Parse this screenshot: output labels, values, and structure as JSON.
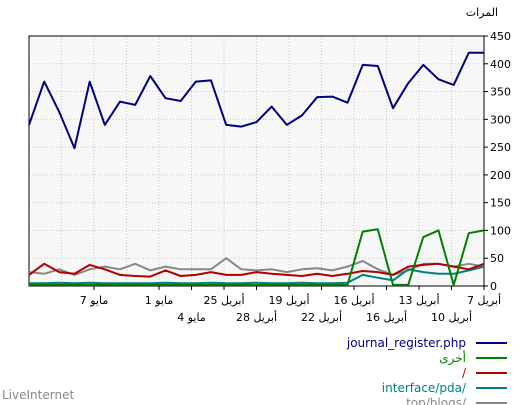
{
  "chart_data": {
    "type": "line",
    "ylabel": "المرات",
    "ylim": [
      0,
      450
    ],
    "yticks": [
      0,
      50,
      100,
      150,
      200,
      250,
      300,
      350,
      400,
      450
    ],
    "x_tick_labels_row1": [
      "7 أبريل",
      "13 أبريل",
      "16 أبريل",
      "19 أبريل",
      "25 أبريل",
      "1 مايو",
      "7 مايو"
    ],
    "x_tick_labels_row2": [
      "10 أبريل",
      "16 أبريل",
      "22 أبريل",
      "28 أبريل",
      "4 مايو"
    ],
    "grid": true,
    "legend_position": "bottom-right",
    "series": [
      {
        "name": "journal_register.php",
        "color": "#000080",
        "values": [
          290,
          368,
          313,
          248,
          368,
          290,
          332,
          326,
          378,
          338,
          333,
          368,
          370,
          290,
          287,
          295,
          323,
          290,
          307,
          340,
          341,
          330,
          398,
          396,
          320,
          365,
          398,
          372,
          362,
          420,
          420
        ]
      },
      {
        "name": "أخرى",
        "color": "#008000",
        "values": [
          2,
          2,
          2,
          2,
          2,
          2,
          2,
          2,
          2,
          2,
          2,
          2,
          2,
          2,
          2,
          2,
          2,
          2,
          2,
          2,
          2,
          2,
          98,
          102,
          2,
          2,
          88,
          100,
          2,
          95,
          100
        ]
      },
      {
        "name": "/",
        "color": "#b00000",
        "values": [
          20,
          40,
          25,
          22,
          38,
          30,
          20,
          18,
          17,
          28,
          18,
          20,
          25,
          20,
          20,
          25,
          22,
          20,
          18,
          22,
          18,
          22,
          27,
          25,
          20,
          35,
          38,
          40,
          35,
          30,
          40
        ]
      },
      {
        "name": "interface/pda/",
        "color": "#008080",
        "values": [
          5,
          5,
          6,
          5,
          6,
          5,
          5,
          5,
          5,
          6,
          5,
          5,
          6,
          5,
          5,
          6,
          5,
          5,
          6,
          5,
          5,
          6,
          20,
          15,
          10,
          30,
          25,
          22,
          22,
          28,
          35
        ]
      },
      {
        "name": "top/blogs/",
        "color": "#888888",
        "values": [
          25,
          22,
          30,
          20,
          30,
          35,
          30,
          40,
          28,
          35,
          30,
          30,
          30,
          50,
          30,
          28,
          30,
          25,
          30,
          32,
          28,
          35,
          45,
          30,
          20,
          28,
          40,
          40,
          35,
          40,
          35
        ]
      }
    ]
  },
  "footer": {
    "brand": "LiveInternet"
  }
}
